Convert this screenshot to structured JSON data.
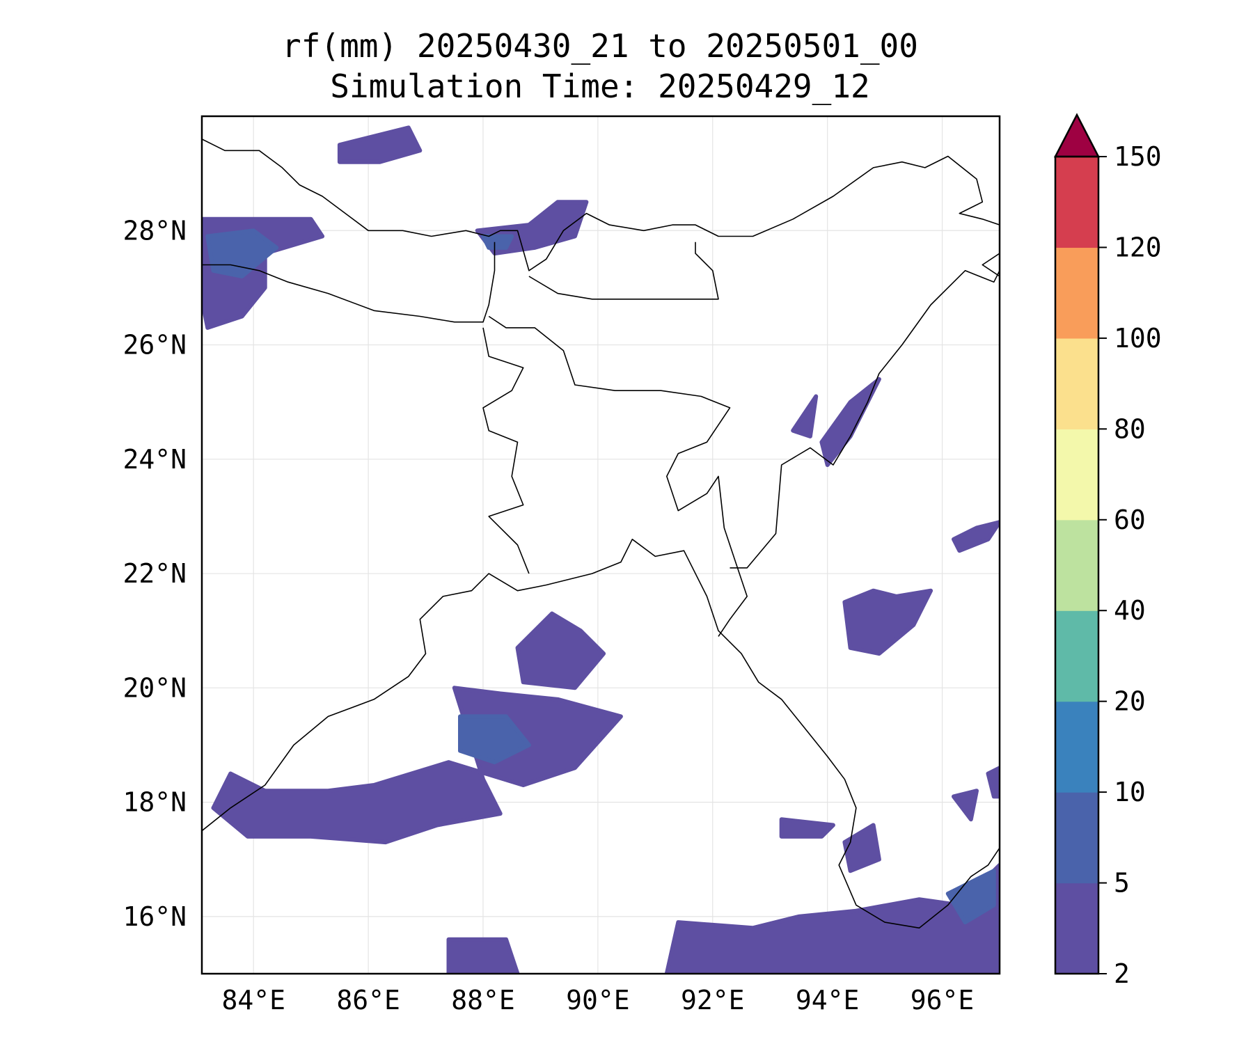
{
  "title": {
    "line1": "rf(mm) 20250430_21 to 20250501_00",
    "line2": "Simulation Time: 20250429_12"
  },
  "map": {
    "lon_range": [
      83.1,
      97.0
    ],
    "lat_range": [
      15.0,
      30.0
    ],
    "lon_ticks": [
      84,
      86,
      88,
      90,
      92,
      94,
      96
    ],
    "lat_ticks": [
      16,
      18,
      20,
      22,
      24,
      26,
      28
    ],
    "lon_tick_labels": [
      "84°E",
      "86°E",
      "88°E",
      "90°E",
      "92°E",
      "94°E",
      "96°E"
    ],
    "lat_tick_labels": [
      "16°N",
      "18°N",
      "20°N",
      "22°N",
      "24°N",
      "26°N",
      "28°N"
    ],
    "gridlines": true,
    "rain_regions": [
      {
        "level": 1,
        "pts": [
          [
            83.1,
            28.2
          ],
          [
            85.0,
            28.2
          ],
          [
            85.2,
            27.9
          ],
          [
            84.2,
            27.6
          ],
          [
            84.2,
            27.0
          ],
          [
            83.8,
            26.5
          ],
          [
            83.2,
            26.3
          ],
          [
            83.1,
            26.8
          ]
        ]
      },
      {
        "level": 2,
        "pts": [
          [
            83.2,
            27.9
          ],
          [
            84.0,
            28.0
          ],
          [
            84.4,
            27.7
          ],
          [
            83.8,
            27.2
          ],
          [
            83.3,
            27.3
          ]
        ]
      },
      {
        "level": 1,
        "pts": [
          [
            85.5,
            29.5
          ],
          [
            86.7,
            29.8
          ],
          [
            86.9,
            29.4
          ],
          [
            86.2,
            29.2
          ],
          [
            85.5,
            29.2
          ]
        ]
      },
      {
        "level": 1,
        "pts": [
          [
            87.9,
            28.0
          ],
          [
            88.8,
            28.1
          ],
          [
            89.3,
            28.5
          ],
          [
            89.8,
            28.5
          ],
          [
            89.6,
            27.9
          ],
          [
            88.9,
            27.7
          ],
          [
            88.2,
            27.6
          ]
        ]
      },
      {
        "level": 2,
        "pts": [
          [
            88.0,
            27.9
          ],
          [
            88.5,
            27.9
          ],
          [
            88.4,
            27.7
          ],
          [
            88.1,
            27.7
          ]
        ]
      },
      {
        "level": 1,
        "pts": [
          [
            93.9,
            24.3
          ],
          [
            94.4,
            25.0
          ],
          [
            94.9,
            25.4
          ],
          [
            94.4,
            24.4
          ],
          [
            94.0,
            23.9
          ]
        ]
      },
      {
        "level": 1,
        "pts": [
          [
            93.4,
            24.5
          ],
          [
            93.8,
            25.1
          ],
          [
            93.7,
            24.4
          ]
        ]
      },
      {
        "level": 1,
        "pts": [
          [
            96.2,
            22.6
          ],
          [
            96.6,
            22.8
          ],
          [
            97.0,
            22.9
          ],
          [
            96.8,
            22.6
          ],
          [
            96.3,
            22.4
          ]
        ]
      },
      {
        "level": 1,
        "pts": [
          [
            94.3,
            21.5
          ],
          [
            94.8,
            21.7
          ],
          [
            95.2,
            21.6
          ],
          [
            95.8,
            21.7
          ],
          [
            95.5,
            21.1
          ],
          [
            94.9,
            20.6
          ],
          [
            94.4,
            20.7
          ]
        ]
      },
      {
        "level": 1,
        "pts": [
          [
            89.2,
            21.3
          ],
          [
            89.7,
            21.0
          ],
          [
            90.1,
            20.6
          ],
          [
            89.6,
            20.0
          ],
          [
            88.7,
            20.1
          ],
          [
            88.6,
            20.7
          ]
        ]
      },
      {
        "level": 1,
        "pts": [
          [
            87.5,
            20.0
          ],
          [
            88.3,
            19.9
          ],
          [
            89.3,
            19.8
          ],
          [
            90.4,
            19.5
          ],
          [
            89.6,
            18.6
          ],
          [
            88.7,
            18.3
          ],
          [
            87.4,
            18.7
          ],
          [
            86.1,
            18.3
          ],
          [
            85.3,
            18.2
          ],
          [
            84.2,
            18.2
          ],
          [
            83.6,
            18.5
          ],
          [
            83.3,
            17.9
          ],
          [
            83.9,
            17.4
          ],
          [
            85.0,
            17.4
          ],
          [
            86.3,
            17.3
          ],
          [
            87.2,
            17.6
          ],
          [
            88.3,
            17.8
          ],
          [
            88.0,
            18.4
          ]
        ]
      },
      {
        "level": 2,
        "pts": [
          [
            87.6,
            19.5
          ],
          [
            88.4,
            19.5
          ],
          [
            88.8,
            19.0
          ],
          [
            88.2,
            18.7
          ],
          [
            87.6,
            18.9
          ]
        ]
      },
      {
        "level": 1,
        "pts": [
          [
            93.2,
            17.7
          ],
          [
            94.1,
            17.6
          ],
          [
            93.9,
            17.4
          ],
          [
            93.2,
            17.4
          ]
        ]
      },
      {
        "level": 1,
        "pts": [
          [
            94.3,
            17.3
          ],
          [
            94.8,
            17.6
          ],
          [
            94.9,
            17.0
          ],
          [
            94.4,
            16.8
          ]
        ]
      },
      {
        "level": 1,
        "pts": [
          [
            91.4,
            15.9
          ],
          [
            92.7,
            15.8
          ],
          [
            93.5,
            16.0
          ],
          [
            94.5,
            16.1
          ],
          [
            95.6,
            16.3
          ],
          [
            96.3,
            16.2
          ],
          [
            97.0,
            16.9
          ],
          [
            97.0,
            15.0
          ],
          [
            91.2,
            15.0
          ]
        ]
      },
      {
        "level": 2,
        "pts": [
          [
            96.1,
            16.4
          ],
          [
            96.9,
            16.8
          ],
          [
            96.9,
            16.2
          ],
          [
            96.4,
            15.9
          ]
        ]
      },
      {
        "level": 1,
        "pts": [
          [
            96.2,
            18.1
          ],
          [
            96.6,
            18.2
          ],
          [
            96.5,
            17.7
          ]
        ]
      },
      {
        "level": 1,
        "pts": [
          [
            96.8,
            18.5
          ],
          [
            97.0,
            18.6
          ],
          [
            97.0,
            18.1
          ],
          [
            96.9,
            18.1
          ]
        ]
      },
      {
        "level": 1,
        "pts": [
          [
            87.4,
            15.6
          ],
          [
            88.4,
            15.6
          ],
          [
            88.6,
            15.0
          ],
          [
            87.4,
            15.0
          ]
        ]
      }
    ],
    "boundaries": [
      {
        "closed": false,
        "pts": [
          [
            83.1,
            29.6
          ],
          [
            83.5,
            29.4
          ],
          [
            84.1,
            29.4
          ],
          [
            84.5,
            29.1
          ],
          [
            84.8,
            28.8
          ],
          [
            85.2,
            28.6
          ],
          [
            85.6,
            28.3
          ],
          [
            86.0,
            28.0
          ],
          [
            86.6,
            28.0
          ],
          [
            87.1,
            27.9
          ],
          [
            87.7,
            28.0
          ],
          [
            88.1,
            27.9
          ],
          [
            88.3,
            28.0
          ],
          [
            88.6,
            28.0
          ],
          [
            88.8,
            27.3
          ],
          [
            89.1,
            27.5
          ],
          [
            89.4,
            28.0
          ],
          [
            89.8,
            28.3
          ],
          [
            90.2,
            28.1
          ],
          [
            90.8,
            28.0
          ],
          [
            91.3,
            28.1
          ],
          [
            91.7,
            28.1
          ],
          [
            92.1,
            27.9
          ],
          [
            92.7,
            27.9
          ],
          [
            93.4,
            28.2
          ],
          [
            94.1,
            28.6
          ],
          [
            94.8,
            29.1
          ],
          [
            95.3,
            29.2
          ],
          [
            95.7,
            29.1
          ],
          [
            96.1,
            29.3
          ],
          [
            96.6,
            28.9
          ],
          [
            96.7,
            28.5
          ],
          [
            96.3,
            28.3
          ],
          [
            96.7,
            28.2
          ],
          [
            97.0,
            28.1
          ]
        ]
      },
      {
        "closed": false,
        "pts": [
          [
            83.1,
            27.4
          ],
          [
            83.6,
            27.4
          ],
          [
            84.1,
            27.3
          ],
          [
            84.6,
            27.1
          ],
          [
            85.3,
            26.9
          ],
          [
            86.1,
            26.6
          ],
          [
            86.9,
            26.5
          ],
          [
            87.5,
            26.4
          ],
          [
            88.0,
            26.4
          ],
          [
            88.1,
            26.7
          ],
          [
            88.2,
            27.3
          ],
          [
            88.2,
            27.8
          ]
        ]
      },
      {
        "closed": false,
        "pts": [
          [
            88.8,
            27.2
          ],
          [
            89.3,
            26.9
          ],
          [
            89.9,
            26.8
          ],
          [
            90.6,
            26.8
          ],
          [
            91.4,
            26.8
          ],
          [
            92.1,
            26.8
          ],
          [
            92.0,
            27.3
          ],
          [
            91.7,
            27.6
          ],
          [
            91.7,
            27.8
          ]
        ]
      },
      {
        "closed": false,
        "pts": [
          [
            88.1,
            26.5
          ],
          [
            88.4,
            26.3
          ],
          [
            88.9,
            26.3
          ],
          [
            89.4,
            25.9
          ],
          [
            89.6,
            25.3
          ],
          [
            90.3,
            25.2
          ],
          [
            91.1,
            25.2
          ],
          [
            91.8,
            25.1
          ],
          [
            92.3,
            24.9
          ],
          [
            91.9,
            24.3
          ],
          [
            91.4,
            24.1
          ],
          [
            91.2,
            23.7
          ],
          [
            91.4,
            23.1
          ],
          [
            91.9,
            23.4
          ],
          [
            92.1,
            23.7
          ],
          [
            92.2,
            22.8
          ],
          [
            92.4,
            22.2
          ],
          [
            92.6,
            21.6
          ],
          [
            92.3,
            21.2
          ],
          [
            92.1,
            20.9
          ]
        ]
      },
      {
        "closed": false,
        "pts": [
          [
            88.8,
            22.0
          ],
          [
            88.6,
            22.5
          ],
          [
            88.1,
            23.0
          ],
          [
            88.7,
            23.2
          ],
          [
            88.5,
            23.7
          ],
          [
            88.6,
            24.3
          ],
          [
            88.1,
            24.5
          ],
          [
            88.0,
            24.9
          ],
          [
            88.5,
            25.2
          ],
          [
            88.7,
            25.6
          ],
          [
            88.1,
            25.8
          ],
          [
            88.0,
            26.3
          ]
        ]
      },
      {
        "closed": false,
        "pts": [
          [
            92.3,
            22.1
          ],
          [
            92.6,
            22.1
          ],
          [
            93.1,
            22.7
          ],
          [
            93.2,
            23.9
          ],
          [
            93.7,
            24.2
          ],
          [
            94.1,
            23.9
          ],
          [
            94.4,
            24.4
          ],
          [
            94.7,
            25.0
          ],
          [
            94.9,
            25.5
          ],
          [
            95.3,
            26.0
          ],
          [
            95.8,
            26.7
          ],
          [
            96.4,
            27.3
          ],
          [
            96.9,
            27.1
          ],
          [
            97.0,
            27.3
          ]
        ]
      },
      {
        "closed": false,
        "pts": [
          [
            97.0,
            27.6
          ],
          [
            96.7,
            27.4
          ],
          [
            97.0,
            27.2
          ]
        ]
      },
      {
        "closed": false,
        "pts": [
          [
            83.1,
            17.5
          ],
          [
            83.6,
            17.9
          ],
          [
            84.2,
            18.3
          ],
          [
            84.7,
            19.0
          ],
          [
            85.3,
            19.5
          ],
          [
            86.1,
            19.8
          ],
          [
            86.7,
            20.2
          ],
          [
            87.0,
            20.6
          ],
          [
            86.9,
            21.2
          ],
          [
            87.3,
            21.6
          ],
          [
            87.8,
            21.7
          ],
          [
            88.1,
            22.0
          ],
          [
            88.6,
            21.7
          ],
          [
            89.1,
            21.8
          ],
          [
            89.9,
            22.0
          ],
          [
            90.4,
            22.2
          ],
          [
            90.6,
            22.6
          ],
          [
            91.0,
            22.3
          ],
          [
            91.5,
            22.4
          ],
          [
            91.9,
            21.6
          ],
          [
            92.1,
            21.0
          ],
          [
            92.5,
            20.6
          ],
          [
            92.8,
            20.1
          ],
          [
            93.2,
            19.8
          ],
          [
            93.6,
            19.3
          ],
          [
            94.0,
            18.8
          ],
          [
            94.3,
            18.4
          ],
          [
            94.5,
            17.9
          ],
          [
            94.4,
            17.3
          ],
          [
            94.2,
            16.9
          ],
          [
            94.5,
            16.2
          ],
          [
            95.0,
            15.9
          ],
          [
            95.6,
            15.8
          ],
          [
            96.1,
            16.2
          ],
          [
            96.5,
            16.7
          ],
          [
            96.8,
            16.9
          ],
          [
            97.0,
            17.2
          ]
        ]
      }
    ]
  },
  "colorbar": {
    "boundaries": [
      2,
      5,
      10,
      20,
      40,
      60,
      80,
      100,
      120,
      150
    ],
    "tick_labels": [
      "2",
      "5",
      "10",
      "20",
      "40",
      "60",
      "80",
      "100",
      "120",
      "150"
    ],
    "colors": [
      "#5e4fa2",
      "#4a63ab",
      "#3a82bd",
      "#5fbaa8",
      "#bde29f",
      "#f3f8ab",
      "#fbe08d",
      "#f99d5a",
      "#d53e4f"
    ],
    "extend_color": "#9e0142"
  }
}
